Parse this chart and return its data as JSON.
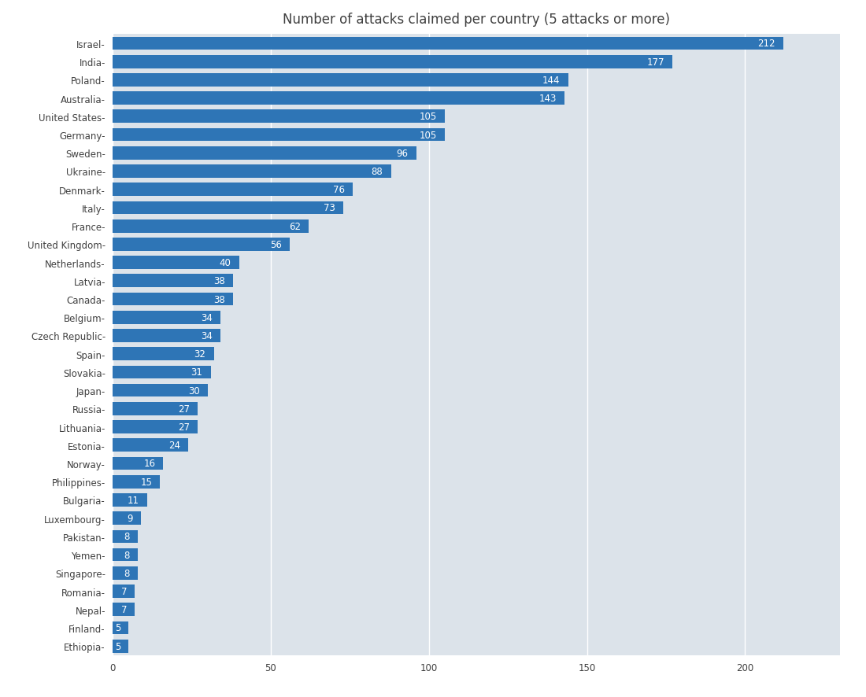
{
  "title": "Number of attacks claimed per country (5 attacks or more)",
  "categories": [
    "Israel",
    "India",
    "Poland",
    "Australia",
    "United States",
    "Germany",
    "Sweden",
    "Ukraine",
    "Denmark",
    "Italy",
    "France",
    "United Kingdom",
    "Netherlands",
    "Latvia",
    "Canada",
    "Belgium",
    "Czech Republic",
    "Spain",
    "Slovakia",
    "Japan",
    "Russia",
    "Lithuania",
    "Estonia",
    "Norway",
    "Philippines",
    "Bulgaria",
    "Luxembourg",
    "Pakistan",
    "Yemen",
    "Singapore",
    "Romania",
    "Nepal",
    "Finland",
    "Ethiopia"
  ],
  "values": [
    212,
    177,
    144,
    143,
    105,
    105,
    96,
    88,
    76,
    73,
    62,
    56,
    40,
    38,
    38,
    34,
    34,
    32,
    31,
    30,
    27,
    27,
    24,
    16,
    15,
    11,
    9,
    8,
    8,
    8,
    7,
    7,
    5,
    5
  ],
  "bar_color": "#2e75b6",
  "figure_background": "#ffffff",
  "plot_background": "#dce3ea",
  "text_color": "#404040",
  "label_color": "#ffffff",
  "title_fontsize": 12,
  "label_fontsize": 8.5,
  "tick_fontsize": 8.5,
  "xlim": [
    0,
    230
  ],
  "grid_color": "#ffffff",
  "bar_height": 0.72
}
